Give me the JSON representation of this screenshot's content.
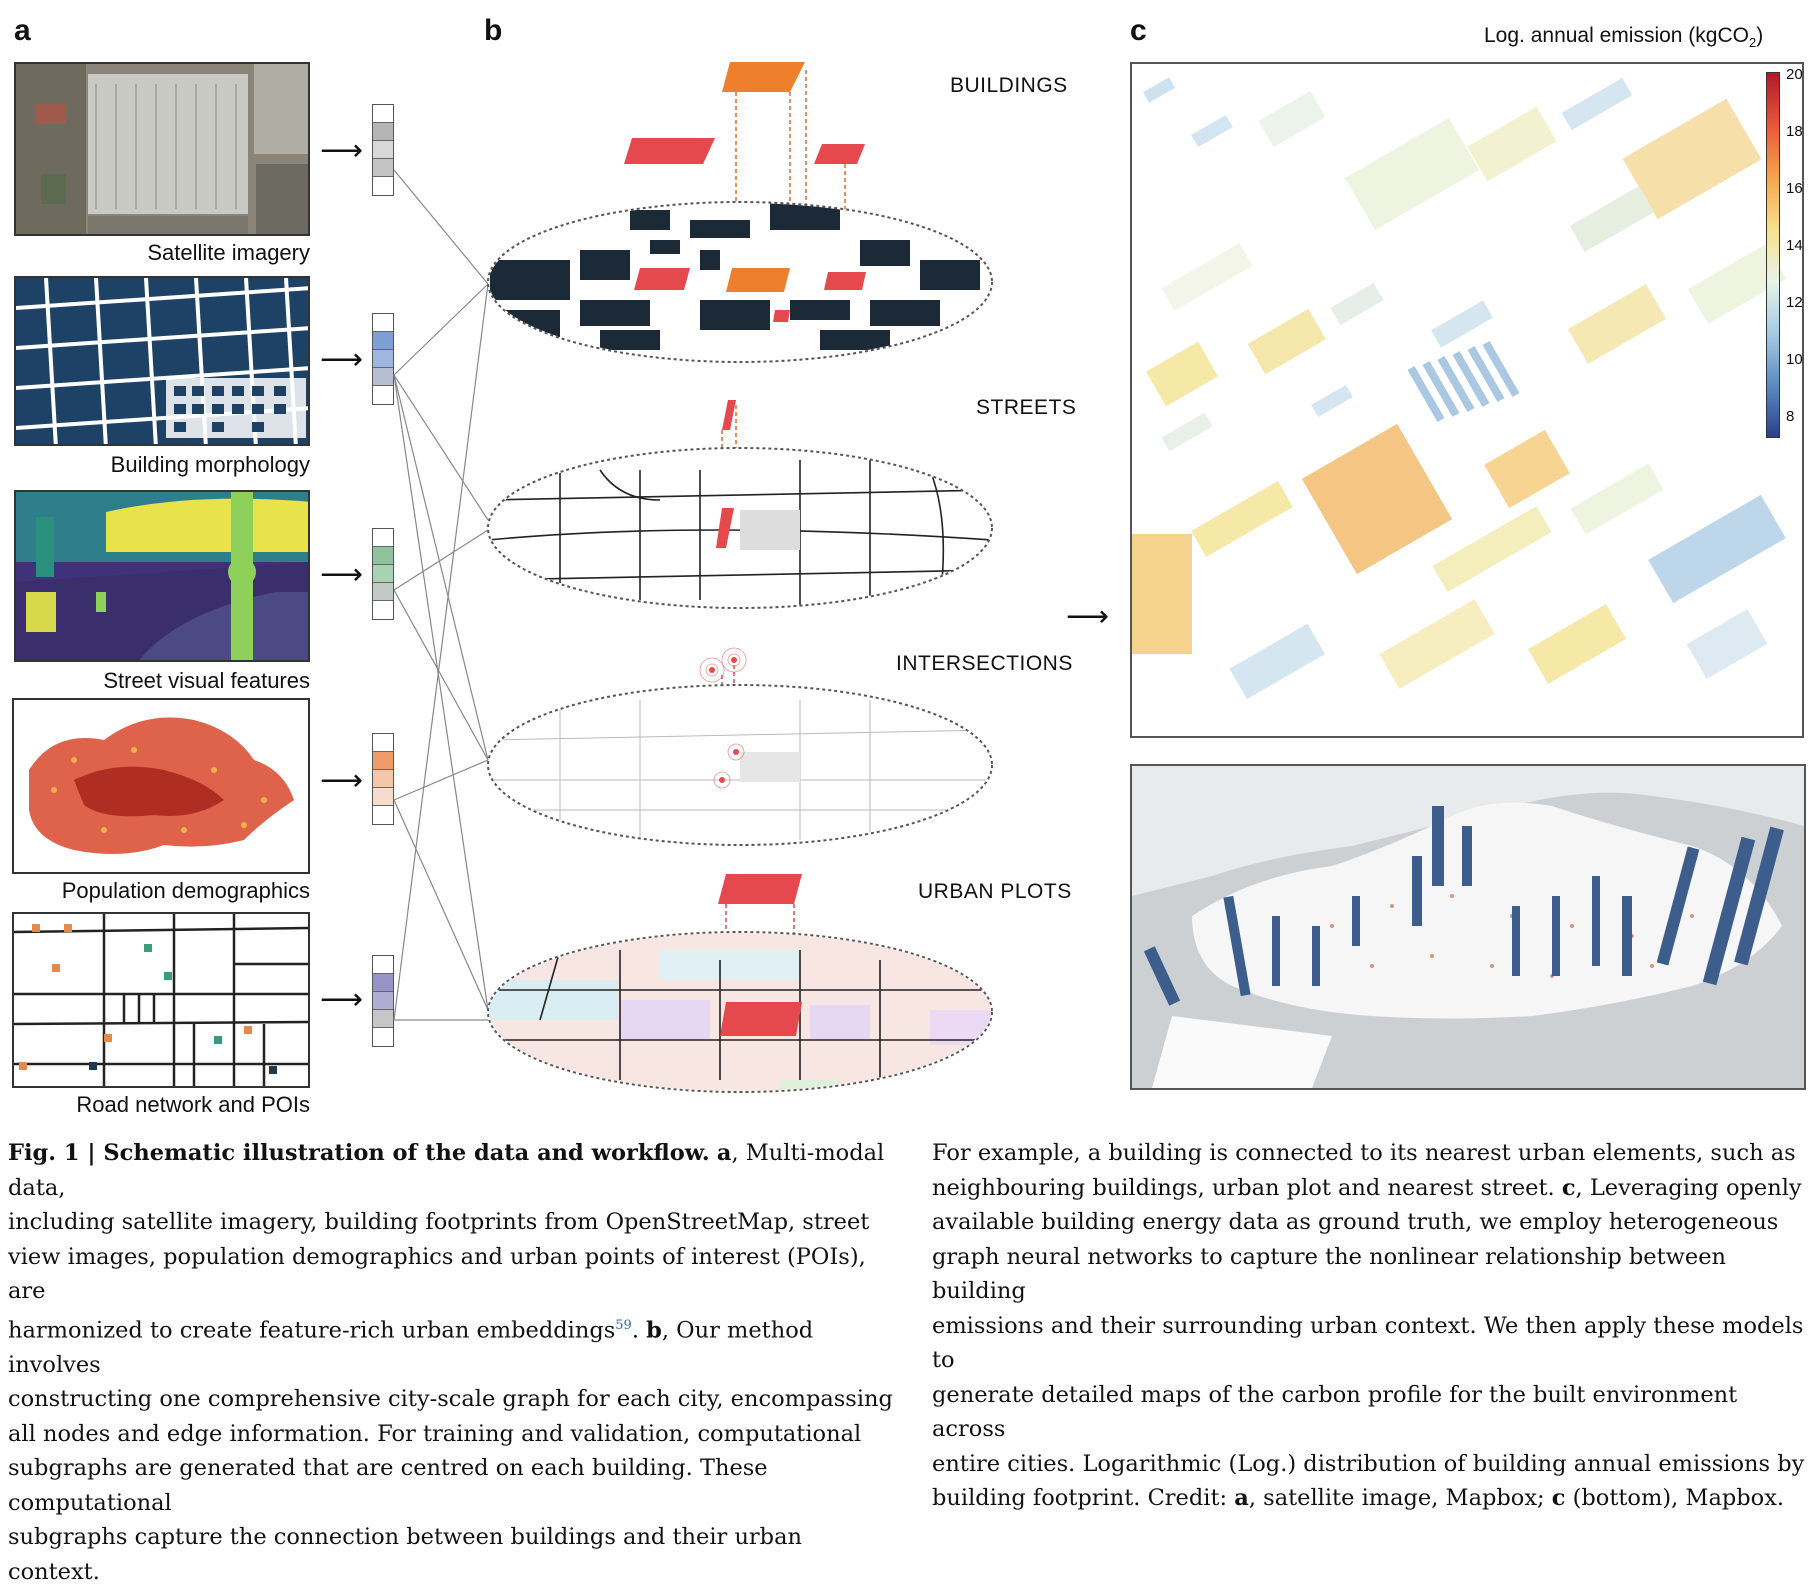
{
  "panels": {
    "a": {
      "letter": "a",
      "captions": [
        "Satellite imagery",
        "Building morphology",
        "Street visual features",
        "Population demographics",
        "Road network and POIs"
      ]
    },
    "b": {
      "letter": "b",
      "layers": [
        "BUILDINGS",
        "STREETS",
        "INTERSECTIONS",
        "URBAN PLOTS"
      ]
    },
    "c": {
      "letter": "c",
      "colorbar_title_main": "Log. annual emission (kgCO",
      "colorbar_title_sub": "2",
      "colorbar_title_end": ")",
      "colorbar_ticks": [
        "20",
        "18",
        "16",
        "14",
        "12",
        "10",
        "8"
      ]
    }
  },
  "caption": {
    "left": {
      "fig_label": "Fig. 1 | Schematic illustration of the data and workflow.",
      "bold_a": "a",
      "line1_rest": ", Multi-modal data,",
      "line2": "including satellite imagery, building footprints from OpenStreetMap, street",
      "line3": "view images, population demographics and urban points of interest (POIs), are",
      "line4_pre": "harmonized to create feature-rich urban embeddings",
      "ref": "59",
      "line4_post": ".",
      "bold_b": "b",
      "line4_rest": ", Our method involves",
      "line5": "constructing one comprehensive city-scale graph for each city, encompassing",
      "line6": "all nodes and edge information. For training and validation, computational",
      "line7": "subgraphs are generated that are centred on each building. These computational",
      "line8": "subgraphs capture the connection between buildings and their urban context."
    },
    "right": {
      "line1": "For example, a building is connected to its nearest urban elements, such as",
      "line2_pre": "neighbouring buildings, urban plot and nearest street.",
      "bold_c": "c",
      "line2_rest": ", Leveraging openly",
      "line3": "available building energy data as ground truth, we employ heterogeneous",
      "line4": "graph neural networks to capture the nonlinear relationship between building",
      "line5": "emissions and their surrounding urban context. We then apply these models to",
      "line6": "generate detailed maps of the carbon profile for the built environment across",
      "line7": "entire cities. Logarithmic (Log.) distribution of building annual emissions by",
      "line8_pre": "building footprint. Credit:",
      "bold_a2": "a",
      "line8_mid": ", satellite image, Mapbox;",
      "bold_c2": "c",
      "line8_end": "(bottom), Mapbox."
    }
  },
  "colors": {
    "buildings_red": "#e5484d",
    "buildings_orange": "#ee7f2d",
    "dark_building": "#1b2a36",
    "cool_blue": "#9ec5e3",
    "warm_yellow": "#f3e08a",
    "warm_orange": "#f2b25a"
  }
}
